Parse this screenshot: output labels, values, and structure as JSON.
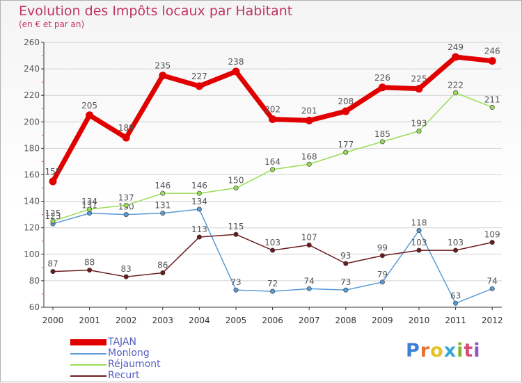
{
  "header": {
    "title": "Evolution des Impôts locaux par Habitant",
    "subtitle": "(en € et par an)"
  },
  "brand": {
    "text": "Proxiti",
    "letter_colors": [
      "#3d7fd4",
      "#e8732b",
      "#e8c028",
      "#3aa6d8",
      "#7fb830",
      "#d84a7a",
      "#8a55c8"
    ]
  },
  "colors": {
    "label": "#555555",
    "axis": "#333333",
    "grid": "#d2d2d2",
    "minor_tick": "#cc3366"
  },
  "chart_data": {
    "type": "line",
    "title": "Evolution des Impôts locaux par Habitant",
    "subtitle": "(en € et par an)",
    "x": [
      "2000",
      "2001",
      "2002",
      "2003",
      "2004",
      "2005",
      "2006",
      "2007",
      "2008",
      "2009",
      "2010",
      "2011",
      "2012"
    ],
    "ylim": [
      60,
      260
    ],
    "yticks": [
      60,
      80,
      100,
      120,
      140,
      160,
      180,
      200,
      220,
      240,
      260
    ],
    "grid": true,
    "legend_position": "bottom-left",
    "series": [
      {
        "name": "TAJAN",
        "color": "#e00000",
        "line_width": 7,
        "marker_radius": 5.5,
        "values": [
          155,
          205,
          188,
          235,
          227,
          238,
          202,
          201,
          208,
          226,
          225,
          249,
          246
        ]
      },
      {
        "name": "Monlong",
        "color": "#5b9bd5",
        "line_width": 1.5,
        "marker_radius": 3.2,
        "values": [
          123,
          131,
          130,
          131,
          134,
          73,
          72,
          74,
          73,
          79,
          118,
          63,
          74
        ]
      },
      {
        "name": "Réjaumont",
        "color": "#99dd55",
        "line_width": 1.5,
        "marker_radius": 3.2,
        "values": [
          125,
          134,
          137,
          146,
          146,
          150,
          164,
          168,
          177,
          185,
          193,
          222,
          211
        ]
      },
      {
        "name": "Recurt",
        "color": "#6b1c1c",
        "line_width": 1.5,
        "marker_radius": 3.2,
        "values": [
          87,
          88,
          83,
          86,
          113,
          115,
          103,
          107,
          93,
          99,
          103,
          103,
          109
        ]
      }
    ]
  }
}
